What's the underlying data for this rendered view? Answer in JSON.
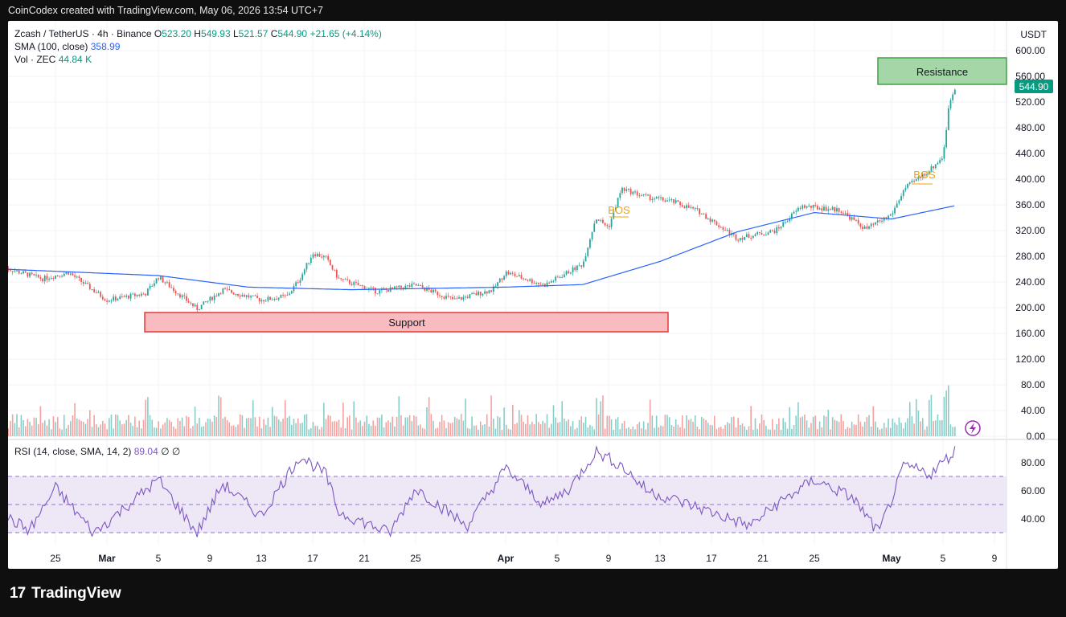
{
  "header": {
    "credit": "CoinCodex created with TradingView.com, May 06, 2026 13:54 UTC+7"
  },
  "legend": {
    "pair": "Zcash / TetherUS · 4h · Binance",
    "o_label": "O",
    "o": "523.20",
    "h_label": "H",
    "h": "549.93",
    "l_label": "L",
    "l": "521.57",
    "c_label": "C",
    "c": "544.90",
    "change": "+21.65 (+4.14%)",
    "sma_label": "SMA (100, close)",
    "sma_value": "358.99",
    "vol_label": "Vol · ZEC",
    "vol_value": "44.84 K",
    "rsi_label": "RSI (14, close, SMA, 14, 2)",
    "rsi_value": "89.04",
    "rsi_extra": "∅ ∅"
  },
  "axis": {
    "currency": "USDT",
    "price_ticks": [
      "600.00",
      "560.00",
      "520.00",
      "480.00",
      "440.00",
      "400.00",
      "360.00",
      "320.00",
      "280.00",
      "240.00",
      "200.00",
      "160.00",
      "120.00",
      "80.00",
      "40.00",
      "0.00"
    ],
    "rsi_ticks": [
      "80.00",
      "60.00",
      "40.00"
    ],
    "x_ticks": [
      "25",
      "Mar",
      "5",
      "9",
      "13",
      "17",
      "21",
      "25",
      "Apr",
      "5",
      "9",
      "13",
      "17",
      "21",
      "25",
      "May",
      "5",
      "9"
    ],
    "current_price": "544.90"
  },
  "annotations": {
    "support": "Support",
    "resistance": "Resistance",
    "bos1": "BOS",
    "bos2": "BOS"
  },
  "footer": {
    "brand": "TradingView",
    "logo": "17"
  },
  "colors": {
    "up": "#26a69a",
    "down": "#ef5350",
    "sma": "#2962ff",
    "rsi": "#7e57c2",
    "support_fill": "#f8bbc0",
    "support_border": "#e53935",
    "resistance_fill": "#a5d6a7",
    "resistance_border": "#43a047",
    "bos": "#f0a30a"
  },
  "chart_data": {
    "type": "candlestick",
    "title": "Zcash / TetherUS · 4h · Binance",
    "ylim": [
      0,
      620
    ],
    "x_range": [
      "Feb 21",
      "May 9"
    ],
    "close_path": [
      {
        "x": "Feb 21",
        "y": 262
      },
      {
        "x": "Feb 24",
        "y": 245
      },
      {
        "x": "Feb 26",
        "y": 255
      },
      {
        "x": "Mar 1",
        "y": 212
      },
      {
        "x": "Mar 4",
        "y": 222
      },
      {
        "x": "Mar 5",
        "y": 248
      },
      {
        "x": "Mar 8",
        "y": 198
      },
      {
        "x": "Mar 10",
        "y": 228
      },
      {
        "x": "Mar 13",
        "y": 212
      },
      {
        "x": "Mar 15",
        "y": 218
      },
      {
        "x": "Mar 16",
        "y": 245
      },
      {
        "x": "Mar 17",
        "y": 285
      },
      {
        "x": "Mar 18",
        "y": 278
      },
      {
        "x": "Mar 19",
        "y": 245
      },
      {
        "x": "Mar 22",
        "y": 225
      },
      {
        "x": "Mar 25",
        "y": 235
      },
      {
        "x": "Mar 28",
        "y": 212
      },
      {
        "x": "Mar 31",
        "y": 228
      },
      {
        "x": "Apr 1",
        "y": 255
      },
      {
        "x": "Apr 4",
        "y": 235
      },
      {
        "x": "Apr 7",
        "y": 268
      },
      {
        "x": "Apr 8",
        "y": 340
      },
      {
        "x": "Apr 9",
        "y": 325
      },
      {
        "x": "Apr 10",
        "y": 385
      },
      {
        "x": "Apr 12",
        "y": 372
      },
      {
        "x": "Apr 14",
        "y": 365
      },
      {
        "x": "Apr 16",
        "y": 350
      },
      {
        "x": "Apr 19",
        "y": 308
      },
      {
        "x": "Apr 22",
        "y": 320
      },
      {
        "x": "Apr 24",
        "y": 358
      },
      {
        "x": "Apr 27",
        "y": 352
      },
      {
        "x": "Apr 29",
        "y": 322
      },
      {
        "x": "May 1",
        "y": 345
      },
      {
        "x": "May 2",
        "y": 385
      },
      {
        "x": "May 4",
        "y": 415
      },
      {
        "x": "May 5",
        "y": 435
      },
      {
        "x": "May 5.5",
        "y": 520
      },
      {
        "x": "May 6",
        "y": 544.9
      }
    ],
    "sma100": [
      {
        "x": "Feb 21",
        "y": 260
      },
      {
        "x": "Mar 5",
        "y": 250
      },
      {
        "x": "Mar 12",
        "y": 232
      },
      {
        "x": "Mar 20",
        "y": 228
      },
      {
        "x": "Apr 1",
        "y": 232
      },
      {
        "x": "Apr 7",
        "y": 236
      },
      {
        "x": "Apr 13",
        "y": 272
      },
      {
        "x": "Apr 19",
        "y": 318
      },
      {
        "x": "Apr 25",
        "y": 348
      },
      {
        "x": "May 1",
        "y": 338
      },
      {
        "x": "May 6",
        "y": 358.99
      }
    ],
    "support_zone": [
      162,
      192
    ],
    "resistance_zone": [
      548,
      588
    ],
    "volume_max_k": 160,
    "rsi": [
      {
        "x": "Feb 21",
        "y": 42
      },
      {
        "x": "Feb 23",
        "y": 32
      },
      {
        "x": "Feb 25",
        "y": 62
      },
      {
        "x": "Feb 28",
        "y": 30
      },
      {
        "x": "Mar 5",
        "y": 68
      },
      {
        "x": "Mar 8",
        "y": 30
      },
      {
        "x": "Mar 10",
        "y": 65
      },
      {
        "x": "Mar 13",
        "y": 42
      },
      {
        "x": "Mar 16",
        "y": 85
      },
      {
        "x": "Mar 18",
        "y": 72
      },
      {
        "x": "Mar 19",
        "y": 45
      },
      {
        "x": "Mar 23",
        "y": 30
      },
      {
        "x": "Mar 25",
        "y": 62
      },
      {
        "x": "Mar 29",
        "y": 35
      },
      {
        "x": "Apr 1",
        "y": 76
      },
      {
        "x": "Apr 4",
        "y": 50
      },
      {
        "x": "Apr 6",
        "y": 62
      },
      {
        "x": "Apr 8",
        "y": 88
      },
      {
        "x": "Apr 10",
        "y": 78
      },
      {
        "x": "Apr 12",
        "y": 60
      },
      {
        "x": "Apr 16",
        "y": 48
      },
      {
        "x": "Apr 20",
        "y": 35
      },
      {
        "x": "Apr 22",
        "y": 50
      },
      {
        "x": "Apr 25",
        "y": 68
      },
      {
        "x": "Apr 28",
        "y": 55
      },
      {
        "x": "Apr 30",
        "y": 30
      },
      {
        "x": "May 2",
        "y": 78
      },
      {
        "x": "May 4",
        "y": 72
      },
      {
        "x": "May 6",
        "y": 89.04
      }
    ],
    "rsi_band": [
      30,
      70
    ]
  }
}
